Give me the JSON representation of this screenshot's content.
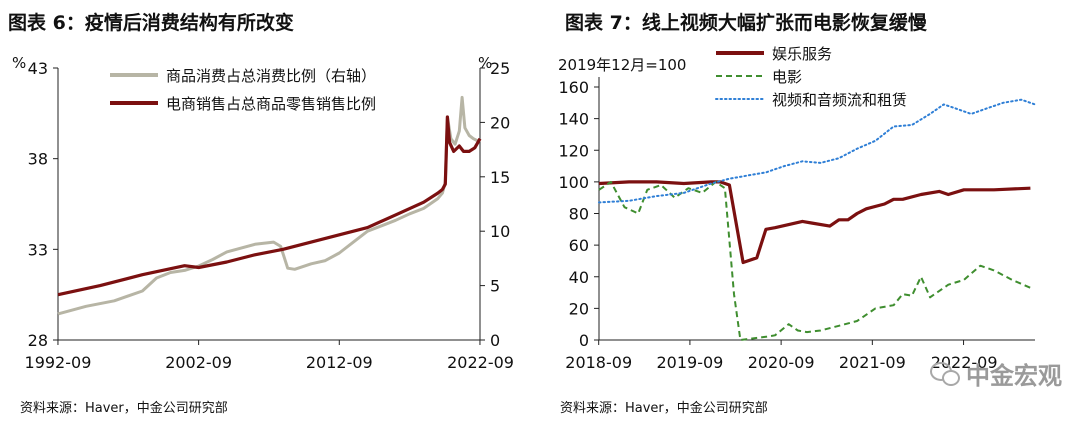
{
  "left": {
    "title": "图表 6：疫情后消费结构有所改变",
    "source": "资料来源：Haver，中金公司研究部",
    "chart_data": {
      "type": "line",
      "title": "图表 6：疫情后消费结构有所改变",
      "x_ticks": [
        "1992-09",
        "2002-09",
        "2012-09",
        "2022-09"
      ],
      "y_left": {
        "unit": "%",
        "ticks": [
          28,
          33,
          38,
          43
        ],
        "range": [
          28,
          43
        ]
      },
      "y_right": {
        "unit": "%",
        "ticks": [
          0,
          5,
          10,
          15,
          20,
          25
        ],
        "range": [
          0,
          25
        ]
      },
      "legend_position": "top-center",
      "series": [
        {
          "name": "商品消费占总消费比例（右轴）",
          "axis": "right",
          "color": "#b7b5a5",
          "points": [
            [
              1992.67,
              2.4
            ],
            [
              1994.67,
              3.1
            ],
            [
              1996.67,
              3.6
            ],
            [
              1998.67,
              4.5
            ],
            [
              1999.67,
              5.7
            ],
            [
              2000.67,
              6.2
            ],
            [
              2001.67,
              6.4
            ],
            [
              2002.67,
              6.8
            ],
            [
              2003.67,
              7.4
            ],
            [
              2004.67,
              8.1
            ],
            [
              2006.67,
              8.8
            ],
            [
              2008.0,
              9.0
            ],
            [
              2008.5,
              8.6
            ],
            [
              2009.0,
              6.6
            ],
            [
              2009.5,
              6.5
            ],
            [
              2010.67,
              7.0
            ],
            [
              2011.67,
              7.3
            ],
            [
              2012.67,
              8.0
            ],
            [
              2013.67,
              9.0
            ],
            [
              2014.67,
              10.0
            ],
            [
              2015.67,
              10.5
            ],
            [
              2016.67,
              11.0
            ],
            [
              2017.67,
              11.6
            ],
            [
              2018.67,
              12.1
            ],
            [
              2019.67,
              13.0
            ],
            [
              2020.0,
              13.5
            ],
            [
              2020.2,
              14.5
            ],
            [
              2020.35,
              20.5
            ],
            [
              2020.6,
              18.5
            ],
            [
              2020.9,
              18.0
            ],
            [
              2021.2,
              19.2
            ],
            [
              2021.4,
              22.3
            ],
            [
              2021.6,
              19.5
            ],
            [
              2021.9,
              18.8
            ],
            [
              2022.2,
              18.5
            ],
            [
              2022.67,
              18.2
            ]
          ]
        },
        {
          "name": "电商销售占总商品零售销售比例",
          "axis": "left",
          "color": "#7b1010",
          "points": [
            [
              1992.67,
              30.5
            ],
            [
              1995.67,
              31.0
            ],
            [
              1998.67,
              31.6
            ],
            [
              2001.67,
              32.1
            ],
            [
              2002.67,
              32.0
            ],
            [
              2004.67,
              32.3
            ],
            [
              2006.67,
              32.7
            ],
            [
              2008.67,
              33.0
            ],
            [
              2010.67,
              33.4
            ],
            [
              2012.67,
              33.8
            ],
            [
              2014.67,
              34.2
            ],
            [
              2016.67,
              34.9
            ],
            [
              2018.67,
              35.6
            ],
            [
              2019.67,
              36.1
            ],
            [
              2020.0,
              36.3
            ],
            [
              2020.2,
              36.6
            ],
            [
              2020.35,
              40.3
            ],
            [
              2020.5,
              38.9
            ],
            [
              2020.8,
              38.4
            ],
            [
              2021.2,
              38.7
            ],
            [
              2021.5,
              38.4
            ],
            [
              2021.9,
              38.4
            ],
            [
              2022.3,
              38.6
            ],
            [
              2022.67,
              39.1
            ]
          ]
        }
      ]
    }
  },
  "right": {
    "title": "图表 7：线上视频大幅扩张而电影恢复缓慢",
    "source": "资料来源：Haver，中金公司研究部",
    "chart_data": {
      "type": "line",
      "title": "图表 7：线上视频大幅扩张而电影恢复缓慢",
      "subtitle": "2019年12月=100",
      "x_ticks": [
        "2018-09",
        "2019-09",
        "2020-09",
        "2021-09",
        "2022-09"
      ],
      "y_ticks": [
        0,
        20,
        40,
        60,
        80,
        100,
        120,
        140,
        160
      ],
      "y_range": [
        0,
        160
      ],
      "legend_position": "top-left",
      "series": [
        {
          "name": "娱乐服务",
          "color": "#7b1010",
          "style": "solid",
          "points": [
            [
              2018.67,
              99
            ],
            [
              2019.0,
              100
            ],
            [
              2019.3,
              100
            ],
            [
              2019.6,
              99
            ],
            [
              2019.9,
              100
            ],
            [
              2020.0,
              100
            ],
            [
              2020.1,
              98
            ],
            [
              2020.25,
              49
            ],
            [
              2020.4,
              52
            ],
            [
              2020.5,
              70
            ],
            [
              2020.6,
              71
            ],
            [
              2020.9,
              75
            ],
            [
              2021.0,
              74
            ],
            [
              2021.2,
              72
            ],
            [
              2021.3,
              76
            ],
            [
              2021.4,
              76
            ],
            [
              2021.5,
              80
            ],
            [
              2021.6,
              83
            ],
            [
              2021.8,
              86
            ],
            [
              2021.9,
              89
            ],
            [
              2022.0,
              89
            ],
            [
              2022.2,
              92
            ],
            [
              2022.4,
              94
            ],
            [
              2022.5,
              92
            ],
            [
              2022.67,
              95
            ],
            [
              2023.0,
              95
            ],
            [
              2023.4,
              96
            ]
          ]
        },
        {
          "name": "电影",
          "color": "#3f8e2f",
          "style": "dashed",
          "points": [
            [
              2018.67,
              95
            ],
            [
              2018.8,
              100
            ],
            [
              2018.95,
              84
            ],
            [
              2019.1,
              80
            ],
            [
              2019.2,
              95
            ],
            [
              2019.35,
              98
            ],
            [
              2019.5,
              90
            ],
            [
              2019.65,
              96
            ],
            [
              2019.8,
              93
            ],
            [
              2019.95,
              100
            ],
            [
              2020.05,
              96
            ],
            [
              2020.15,
              29
            ],
            [
              2020.22,
              0
            ],
            [
              2020.5,
              2
            ],
            [
              2020.6,
              3
            ],
            [
              2020.75,
              10
            ],
            [
              2020.85,
              6
            ],
            [
              2020.95,
              5
            ],
            [
              2021.1,
              6
            ],
            [
              2021.3,
              9
            ],
            [
              2021.5,
              12
            ],
            [
              2021.7,
              20
            ],
            [
              2021.9,
              22
            ],
            [
              2022.0,
              29
            ],
            [
              2022.1,
              28
            ],
            [
              2022.2,
              40
            ],
            [
              2022.3,
              27
            ],
            [
              2022.5,
              35
            ],
            [
              2022.67,
              38
            ],
            [
              2022.85,
              47
            ],
            [
              2023.0,
              44
            ],
            [
              2023.2,
              38
            ],
            [
              2023.4,
              33
            ]
          ]
        },
        {
          "name": "视频和音频流和租赁",
          "color": "#2f7fd6",
          "style": "dotted",
          "points": [
            [
              2018.67,
              87
            ],
            [
              2019.0,
              88
            ],
            [
              2019.3,
              91
            ],
            [
              2019.6,
              93
            ],
            [
              2019.9,
              99
            ],
            [
              2020.1,
              102
            ],
            [
              2020.3,
              104
            ],
            [
              2020.5,
              106
            ],
            [
              2020.7,
              110
            ],
            [
              2020.9,
              113
            ],
            [
              2021.1,
              112
            ],
            [
              2021.3,
              115
            ],
            [
              2021.5,
              121
            ],
            [
              2021.7,
              126
            ],
            [
              2021.9,
              135
            ],
            [
              2022.1,
              136
            ],
            [
              2022.3,
              143
            ],
            [
              2022.45,
              149
            ],
            [
              2022.6,
              146
            ],
            [
              2022.75,
              143
            ],
            [
              2022.9,
              146
            ],
            [
              2023.1,
              150
            ],
            [
              2023.3,
              152
            ],
            [
              2023.45,
              149
            ]
          ]
        }
      ]
    }
  },
  "watermark": {
    "text": "中金宏观",
    "icon": "wechat-icon"
  }
}
